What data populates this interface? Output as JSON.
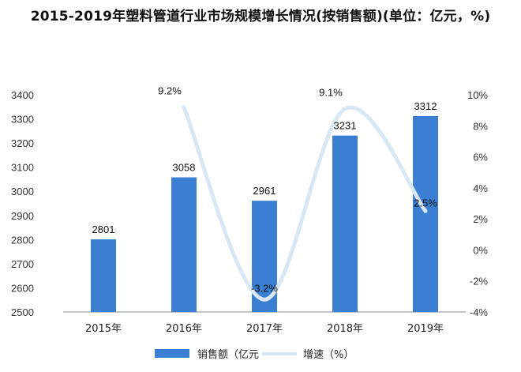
{
  "title": "2015-2019年塑料管道行业市场规模增长情况(按销售额)(单位：亿元，%)",
  "colors": {
    "bar": "#3b7fd3",
    "line": "#d9e6f3",
    "axis": "#8c8c8c"
  },
  "chart_data": {
    "type": "bar",
    "categories": [
      "2015年",
      "2016年",
      "2017年",
      "2018年",
      "2019年"
    ],
    "series": [
      {
        "name": "销售额（亿元",
        "type": "bar",
        "axis": "left",
        "values": [
          2801,
          3058,
          2961,
          3231,
          3312
        ],
        "labels": [
          "2801",
          "3058",
          "2961",
          "3231",
          "3312"
        ]
      },
      {
        "name": "增速（%）",
        "type": "line",
        "axis": "right",
        "smooth": true,
        "values": [
          null,
          9.2,
          -3.2,
          9.1,
          2.5
        ],
        "labels": [
          "",
          "9.2%",
          "-3.2%",
          "9.1%",
          "2.5%"
        ]
      }
    ],
    "y_left": {
      "min": 2500,
      "max": 3400,
      "step": 100,
      "ticks": [
        "2500",
        "2600",
        "2700",
        "2800",
        "2900",
        "3000",
        "3100",
        "3200",
        "3300",
        "3400"
      ]
    },
    "y_right": {
      "min": -4,
      "max": 10,
      "step": 2,
      "ticks": [
        "-4%",
        "-2%",
        "0%",
        "2%",
        "4%",
        "6%",
        "8%",
        "10%"
      ]
    },
    "grid": false,
    "legend_position": "bottom"
  }
}
